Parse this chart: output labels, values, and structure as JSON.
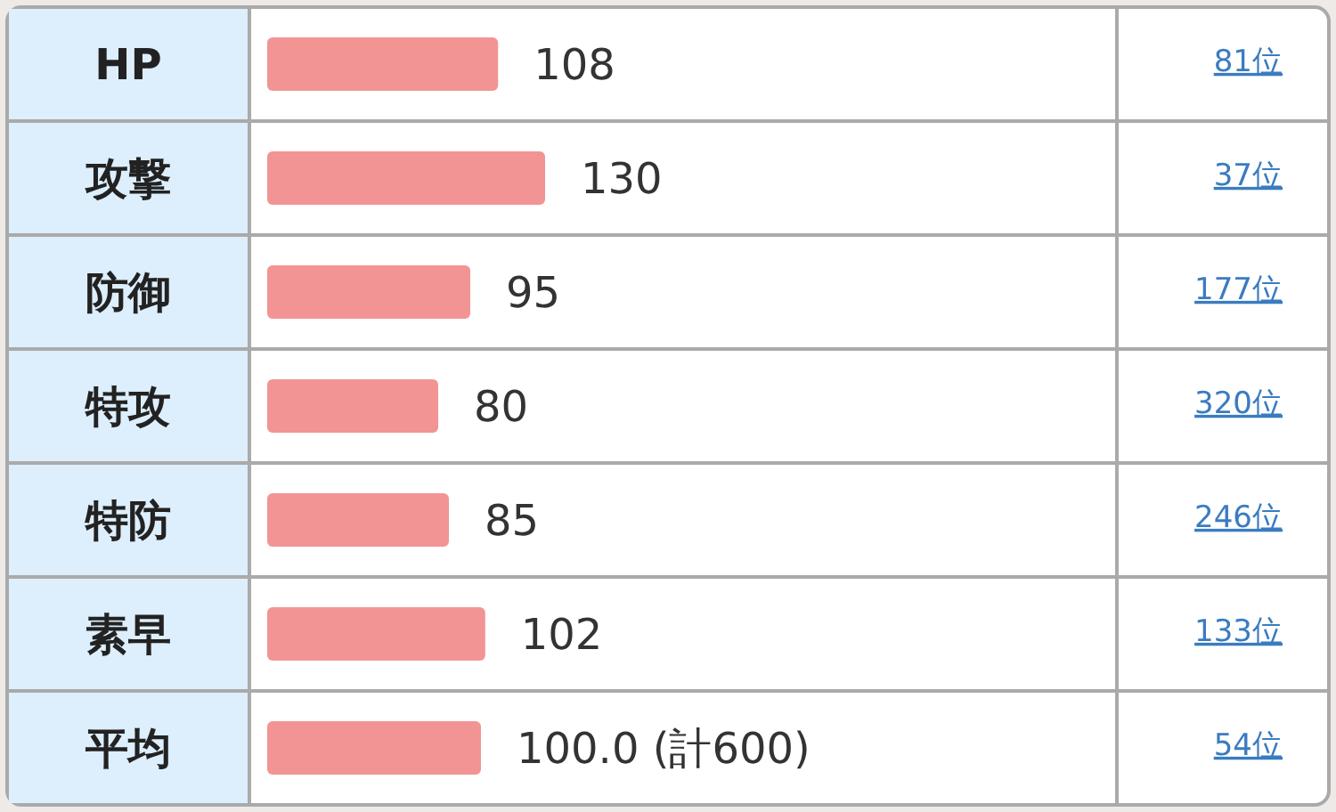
{
  "chart_data": {
    "type": "bar",
    "orientation": "horizontal",
    "categories": [
      "HP",
      "攻撃",
      "防御",
      "特攻",
      "特防",
      "素早",
      "平均"
    ],
    "values": [
      108,
      130,
      95,
      80,
      85,
      102,
      100.0
    ],
    "value_labels": [
      "108",
      "130",
      "95",
      "80",
      "85",
      "102",
      "100.0 (計600)"
    ],
    "color": "#f29494",
    "annotations": [
      "81位",
      "37位",
      "177位",
      "320位",
      "246位",
      "133位",
      "54位"
    ]
  }
}
